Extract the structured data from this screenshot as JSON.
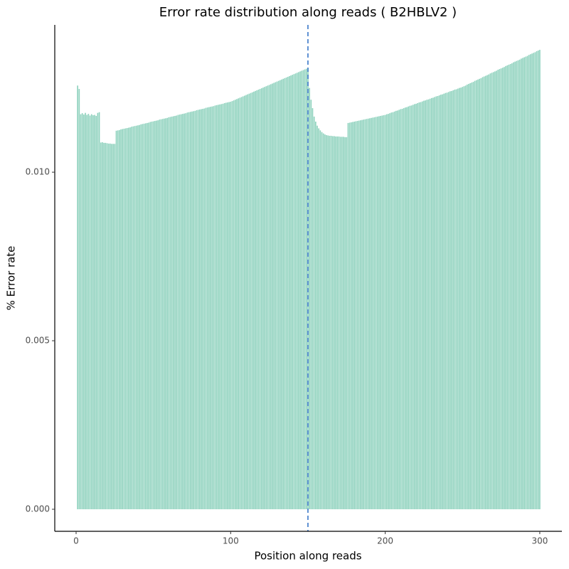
{
  "chart_data": {
    "type": "bar",
    "title": "Error rate distribution along reads ( B2HBLV2 )",
    "x_label": "Position along reads",
    "y_label": "% Error rate",
    "color": "#66c2a5",
    "vline": 150,
    "vline_color": "#3a78c9",
    "xlim": [
      -13.8,
      314.3
    ],
    "xticks": [
      0,
      100,
      200,
      300
    ],
    "ylim": [
      -0.000654,
      0.01437
    ],
    "yticks": [
      {
        "value": 0,
        "label": "0.000"
      },
      {
        "value": 0.005,
        "label": "0.005"
      },
      {
        "value": 0.01,
        "label": "0.010"
      }
    ],
    "x": [
      1,
      2,
      3,
      4,
      5,
      6,
      7,
      8,
      9,
      10,
      11,
      12,
      13,
      14,
      15,
      16,
      17,
      18,
      19,
      20,
      21,
      22,
      23,
      24,
      25,
      26,
      27,
      28,
      29,
      30,
      31,
      32,
      33,
      34,
      35,
      36,
      37,
      38,
      39,
      40,
      41,
      42,
      43,
      44,
      45,
      46,
      47,
      48,
      49,
      50,
      51,
      52,
      53,
      54,
      55,
      56,
      57,
      58,
      59,
      60,
      61,
      62,
      63,
      64,
      65,
      66,
      67,
      68,
      69,
      70,
      71,
      72,
      73,
      74,
      75,
      76,
      77,
      78,
      79,
      80,
      81,
      82,
      83,
      84,
      85,
      86,
      87,
      88,
      89,
      90,
      91,
      92,
      93,
      94,
      95,
      96,
      97,
      98,
      99,
      100,
      101,
      102,
      103,
      104,
      105,
      106,
      107,
      108,
      109,
      110,
      111,
      112,
      113,
      114,
      115,
      116,
      117,
      118,
      119,
      120,
      121,
      122,
      123,
      124,
      125,
      126,
      127,
      128,
      129,
      130,
      131,
      132,
      133,
      134,
      135,
      136,
      137,
      138,
      139,
      140,
      141,
      142,
      143,
      144,
      145,
      146,
      147,
      148,
      149,
      150,
      151,
      152,
      153,
      154,
      155,
      156,
      157,
      158,
      159,
      160,
      161,
      162,
      163,
      164,
      165,
      166,
      167,
      168,
      169,
      170,
      171,
      172,
      173,
      174,
      175,
      176,
      177,
      178,
      179,
      180,
      181,
      182,
      183,
      184,
      185,
      186,
      187,
      188,
      189,
      190,
      191,
      192,
      193,
      194,
      195,
      196,
      197,
      198,
      199,
      200,
      201,
      202,
      203,
      204,
      205,
      206,
      207,
      208,
      209,
      210,
      211,
      212,
      213,
      214,
      215,
      216,
      217,
      218,
      219,
      220,
      221,
      222,
      223,
      224,
      225,
      226,
      227,
      228,
      229,
      230,
      231,
      232,
      233,
      234,
      235,
      236,
      237,
      238,
      239,
      240,
      241,
      242,
      243,
      244,
      245,
      246,
      247,
      248,
      249,
      250,
      251,
      252,
      253,
      254,
      255,
      256,
      257,
      258,
      259,
      260,
      261,
      262,
      263,
      264,
      265,
      266,
      267,
      268,
      269,
      270,
      271,
      272,
      273,
      274,
      275,
      276,
      277,
      278,
      279,
      280,
      281,
      282,
      283,
      284,
      285,
      286,
      287,
      288,
      289,
      290,
      291,
      292,
      293,
      294,
      295,
      296,
      297,
      298,
      299,
      300
    ],
    "values": [
      0.01257,
      0.01247,
      0.01172,
      0.01175,
      0.01171,
      0.01176,
      0.0117,
      0.01173,
      0.01168,
      0.01172,
      0.01169,
      0.0117,
      0.01167,
      0.01176,
      0.01178,
      0.01088,
      0.01089,
      0.01087,
      0.01087,
      0.01086,
      0.01085,
      0.01085,
      0.01084,
      0.01084,
      0.01084,
      0.01123,
      0.01124,
      0.01125,
      0.01127,
      0.01128,
      0.01129,
      0.0113,
      0.01131,
      0.01132,
      0.01133,
      0.01135,
      0.01136,
      0.01137,
      0.01138,
      0.01139,
      0.0114,
      0.01142,
      0.01143,
      0.01144,
      0.01145,
      0.01146,
      0.01147,
      0.01149,
      0.0115,
      0.01151,
      0.01152,
      0.01153,
      0.01154,
      0.01156,
      0.01157,
      0.01158,
      0.01159,
      0.0116,
      0.01161,
      0.01163,
      0.01164,
      0.01165,
      0.01166,
      0.01167,
      0.01168,
      0.0117,
      0.01171,
      0.01172,
      0.01173,
      0.01174,
      0.01175,
      0.01177,
      0.01178,
      0.01179,
      0.0118,
      0.01181,
      0.01182,
      0.01184,
      0.01185,
      0.01186,
      0.01187,
      0.01188,
      0.01189,
      0.01191,
      0.01192,
      0.01193,
      0.01194,
      0.01195,
      0.01196,
      0.01198,
      0.01199,
      0.012,
      0.01201,
      0.01202,
      0.01203,
      0.01205,
      0.01206,
      0.01207,
      0.01208,
      0.01209,
      0.01211,
      0.01213,
      0.01215,
      0.01217,
      0.01219,
      0.01221,
      0.01223,
      0.01225,
      0.01227,
      0.01229,
      0.01231,
      0.01233,
      0.01235,
      0.01237,
      0.01239,
      0.01241,
      0.01243,
      0.01245,
      0.01247,
      0.01249,
      0.01251,
      0.01253,
      0.01255,
      0.01257,
      0.01259,
      0.01261,
      0.01263,
      0.01265,
      0.01267,
      0.01269,
      0.01271,
      0.01273,
      0.01275,
      0.01277,
      0.01279,
      0.01281,
      0.01283,
      0.01285,
      0.01287,
      0.01289,
      0.01291,
      0.01293,
      0.01295,
      0.01297,
      0.01299,
      0.01301,
      0.01303,
      0.01305,
      0.01307,
      0.01309,
      0.0125,
      0.01215,
      0.0119,
      0.01165,
      0.0115,
      0.01138,
      0.0113,
      0.01124,
      0.01119,
      0.01115,
      0.01112,
      0.0111,
      0.01109,
      0.01108,
      0.01108,
      0.01107,
      0.01107,
      0.01106,
      0.01106,
      0.01106,
      0.01105,
      0.01105,
      0.01105,
      0.01104,
      0.01104,
      0.01146,
      0.01147,
      0.01148,
      0.01149,
      0.0115,
      0.01151,
      0.01152,
      0.01153,
      0.01154,
      0.01155,
      0.01156,
      0.01157,
      0.01158,
      0.01159,
      0.0116,
      0.01161,
      0.01162,
      0.01163,
      0.01164,
      0.01165,
      0.01166,
      0.01167,
      0.01168,
      0.01169,
      0.0117,
      0.01172,
      0.01173,
      0.01175,
      0.01177,
      0.01178,
      0.0118,
      0.01182,
      0.01183,
      0.01185,
      0.01187,
      0.01188,
      0.0119,
      0.01192,
      0.01193,
      0.01195,
      0.01197,
      0.01198,
      0.012,
      0.01202,
      0.01203,
      0.01205,
      0.01207,
      0.01208,
      0.0121,
      0.01212,
      0.01213,
      0.01215,
      0.01216,
      0.01218,
      0.0122,
      0.01221,
      0.01223,
      0.01225,
      0.01226,
      0.01228,
      0.0123,
      0.01231,
      0.01233,
      0.01235,
      0.01236,
      0.01238,
      0.0124,
      0.01241,
      0.01243,
      0.01245,
      0.01246,
      0.01248,
      0.0125,
      0.01251,
      0.01253,
      0.01255,
      0.01257,
      0.0126,
      0.01262,
      0.01264,
      0.01266,
      0.01268,
      0.01271,
      0.01273,
      0.01275,
      0.01277,
      0.01279,
      0.01282,
      0.01284,
      0.01286,
      0.01288,
      0.0129,
      0.01293,
      0.01295,
      0.01297,
      0.01299,
      0.01301,
      0.01304,
      0.01306,
      0.01308,
      0.0131,
      0.01312,
      0.01315,
      0.01317,
      0.01319,
      0.01321,
      0.01323,
      0.01326,
      0.01328,
      0.0133,
      0.01332,
      0.01334,
      0.01337,
      0.01339,
      0.01341,
      0.01343,
      0.01345,
      0.01348,
      0.0135,
      0.01352,
      0.01354,
      0.01356,
      0.01359,
      0.01361,
      0.01363
    ]
  }
}
